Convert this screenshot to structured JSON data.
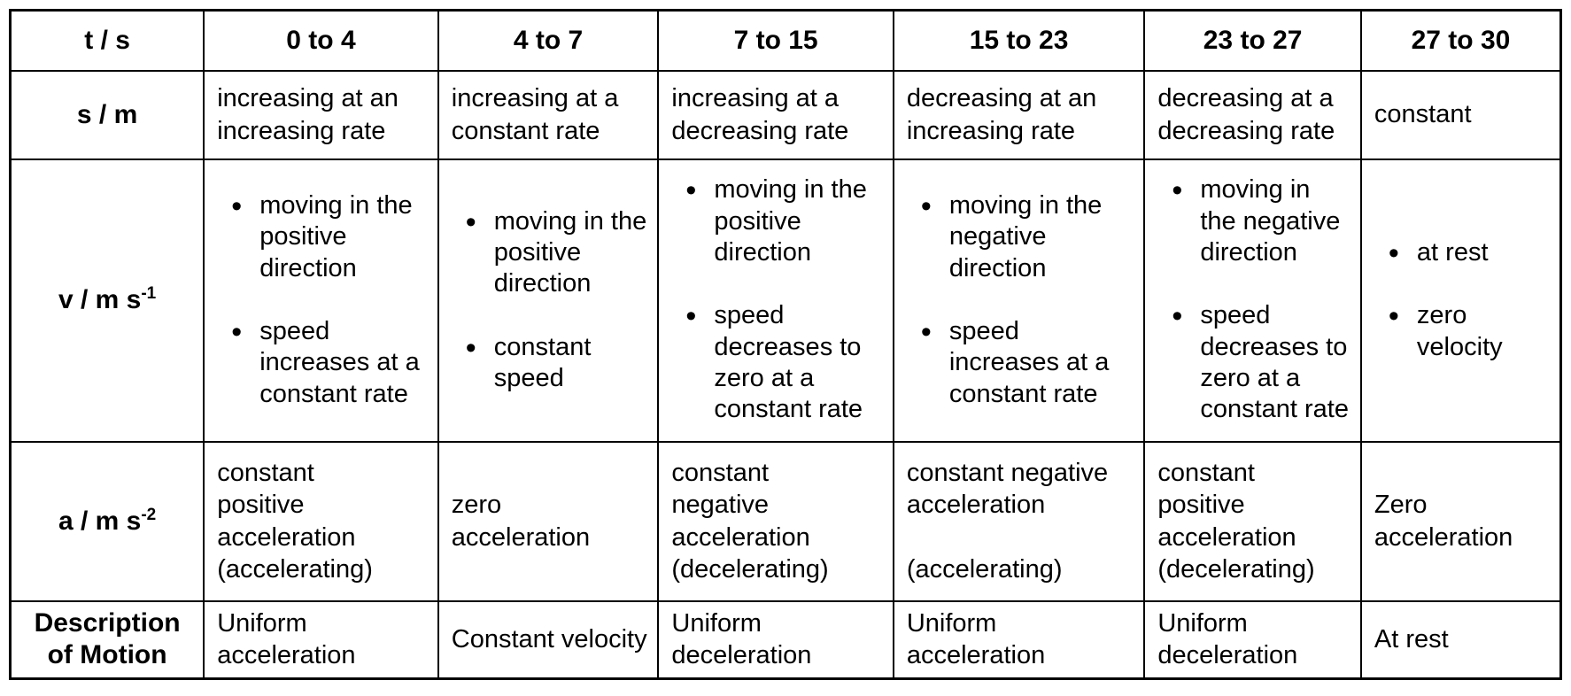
{
  "table": {
    "corner_label": "t / s",
    "time_columns": [
      "0 to 4",
      "4 to 7",
      "7 to 15",
      "15 to 23",
      "23 to 27",
      "27 to 30"
    ],
    "rows": {
      "displacement": {
        "label_base": "s / m",
        "label_sup": "",
        "cells": [
          "increasing at an increasing rate",
          "increasing at a constant rate",
          "increasing at a decreasing rate",
          "decreasing at an increasing rate",
          "decreasing at a decreasing rate",
          "constant"
        ]
      },
      "velocity": {
        "label_base": "v / m s",
        "label_sup": "-1",
        "cells": [
          {
            "bullets": [
              "moving in the positive direction",
              "speed increases at a constant rate"
            ]
          },
          {
            "bullets": [
              "moving in the positive direction",
              "constant speed"
            ]
          },
          {
            "bullets": [
              "moving in the positive direction",
              "speed decreases to zero at a constant rate"
            ]
          },
          {
            "bullets": [
              "moving in the negative direction",
              "speed increases at a constant rate"
            ]
          },
          {
            "bullets": [
              "moving in the negative direction",
              "speed decreases to zero at a constant rate"
            ]
          },
          {
            "bullets": [
              "at rest",
              "zero velocity"
            ]
          }
        ]
      },
      "acceleration": {
        "label_base": "a / m s",
        "label_sup": "-2",
        "cells": [
          "constant\npositive\nacceleration\n(accelerating)",
          "zero\nacceleration",
          "constant\nnegative\nacceleration\n(decelerating)",
          "constant negative\nacceleration\n\n(accelerating)",
          "constant\npositive\nacceleration\n(decelerating)",
          "Zero\nacceleration"
        ]
      },
      "description": {
        "label_base": "Description of Motion",
        "label_sup": "",
        "cells": [
          "Uniform acceleration",
          "Constant velocity",
          "Uniform deceleration",
          "Uniform acceleration",
          "Uniform deceleration",
          "At rest"
        ]
      }
    }
  }
}
